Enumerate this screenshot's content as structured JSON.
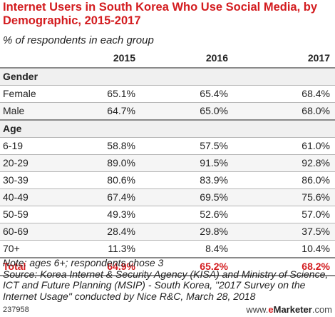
{
  "chart_data": {
    "type": "table",
    "title": "Internet Users in South Korea Who Use Social Media, by Demographic, 2015-2017",
    "subtitle": "% of respondents in each group",
    "columns": [
      "2015",
      "2016",
      "2017"
    ],
    "sections": [
      {
        "name": "Gender",
        "rows": [
          {
            "label": "Female",
            "values": [
              "65.1%",
              "65.4%",
              "68.4%"
            ]
          },
          {
            "label": "Male",
            "values": [
              "64.7%",
              "65.0%",
              "68.0%"
            ]
          }
        ]
      },
      {
        "name": "Age",
        "rows": [
          {
            "label": "6-19",
            "values": [
              "58.8%",
              "57.5%",
              "61.0%"
            ]
          },
          {
            "label": "20-29",
            "values": [
              "89.0%",
              "91.5%",
              "92.8%"
            ]
          },
          {
            "label": "30-39",
            "values": [
              "80.6%",
              "83.9%",
              "86.0%"
            ]
          },
          {
            "label": "40-49",
            "values": [
              "67.4%",
              "69.5%",
              "75.6%"
            ]
          },
          {
            "label": "50-59",
            "values": [
              "49.3%",
              "52.6%",
              "57.0%"
            ]
          },
          {
            "label": "60-69",
            "values": [
              "28.4%",
              "29.8%",
              "37.5%"
            ]
          },
          {
            "label": "70+",
            "values": [
              "11.3%",
              "8.4%",
              "10.4%"
            ]
          }
        ]
      }
    ],
    "total": {
      "label": "Total",
      "values": [
        "64.9%",
        "65.2%",
        "68.2%"
      ]
    }
  },
  "notes": {
    "note": "Note: ages 6+; respondents chose 3",
    "source": "Source: Korea Internet & Security Agency (KISA) and Ministry of Science, ICT and Future Planning (MSIP) - South Korea, \"2017 Survey on the Internet Usage\" conducted by Nice R&C, March 28, 2018"
  },
  "footer": {
    "chart_id": "237958",
    "brand_prefix": "www.",
    "brand_e": "e",
    "brand_name": "Marketer",
    "brand_suffix": ".com"
  },
  "colors": {
    "accent": "#d31c1f"
  }
}
